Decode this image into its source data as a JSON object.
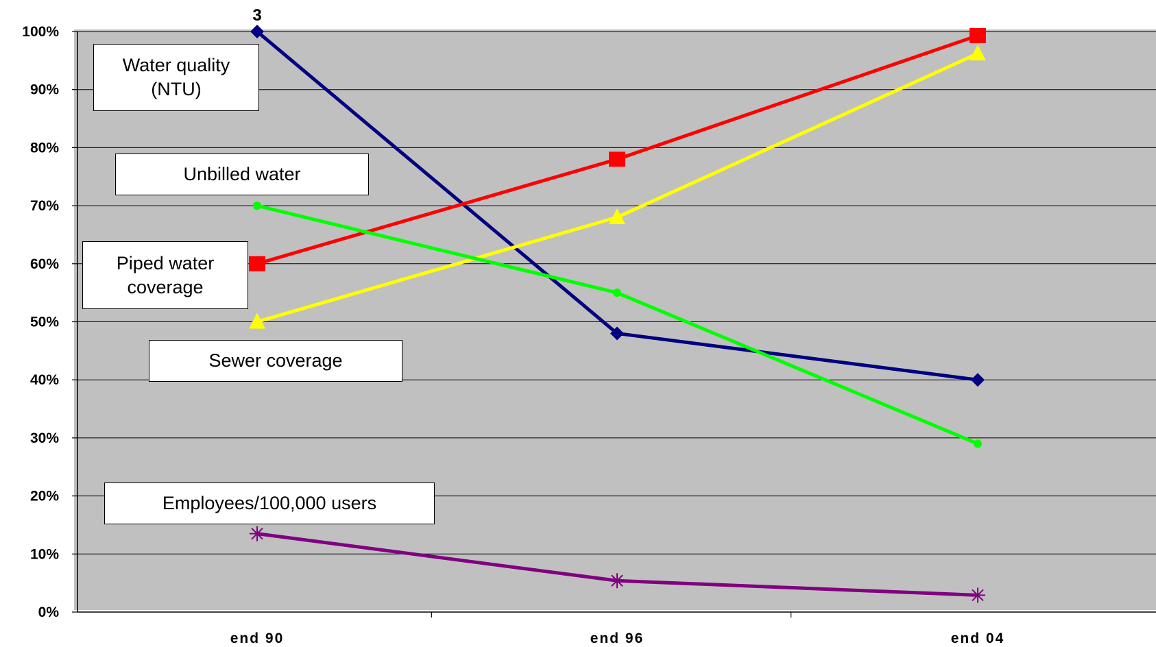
{
  "chart_data": {
    "type": "line",
    "categories": [
      "end 90",
      "end 96",
      "end 04"
    ],
    "ylim": [
      0,
      100
    ],
    "yticks": [
      "0%",
      "10%",
      "20%",
      "30%",
      "40%",
      "50%",
      "60%",
      "70%",
      "80%",
      "90%",
      "100%"
    ],
    "grid": true,
    "plot_background": "#c0c0c0",
    "series": [
      {
        "name": "Water quality\n(NTU)",
        "values": [
          100,
          48,
          40
        ],
        "color": "#000080",
        "marker": "diamond"
      },
      {
        "name": "Piped water\ncoverage",
        "values": [
          60,
          78,
          99.3
        ],
        "color": "#ff0000",
        "marker": "square"
      },
      {
        "name": "Sewer coverage",
        "values": [
          50,
          68,
          96.2
        ],
        "color": "#ffff00",
        "marker": "triangle"
      },
      {
        "name": "Unbilled water",
        "values": [
          70,
          55,
          29
        ],
        "color": "#00ff00",
        "marker": "circle"
      },
      {
        "name": "Employees/100,000 users",
        "values": [
          13.5,
          5.4,
          2.9
        ],
        "color": "#800080",
        "marker": "star"
      }
    ],
    "annotations": [
      {
        "text": "3",
        "series": 0,
        "point": 0
      }
    ]
  }
}
